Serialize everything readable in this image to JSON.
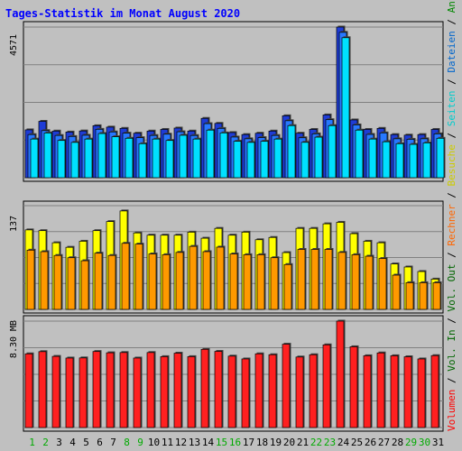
{
  "chart_data": {
    "type": "bar",
    "title": "Tages-Statistik im Monat August 2020",
    "days": [
      "1",
      "2",
      "3",
      "4",
      "5",
      "6",
      "7",
      "8",
      "9",
      "10",
      "11",
      "12",
      "13",
      "14",
      "15",
      "16",
      "17",
      "18",
      "19",
      "20",
      "21",
      "22",
      "23",
      "24",
      "25",
      "26",
      "27",
      "28",
      "29",
      "30",
      "31"
    ],
    "weekend_days": [
      1,
      2,
      8,
      9,
      15,
      16,
      22,
      23,
      29,
      30
    ],
    "grid": true,
    "panels": [
      {
        "name": "requests",
        "max_label": "4571",
        "ymax": 4571,
        "series": [
          {
            "name": "Anfragen",
            "color": "#1e3cd6",
            "values": [
              1452,
              1710,
              1415,
              1385,
              1418,
              1577,
              1535,
              1497,
              1349,
              1415,
              1465,
              1506,
              1415,
              1800,
              1648,
              1369,
              1309,
              1349,
              1415,
              1879,
              1349,
              1465,
              1905,
              4571,
              1753,
              1465,
              1497,
              1309,
              1292,
              1309,
              1465
            ]
          },
          {
            "name": "Dateien",
            "color": "#2878ff",
            "values": [
              1418,
              1538,
              1391,
              1360,
              1397,
              1578,
              1498,
              1461,
              1323,
              1391,
              1430,
              1503,
              1390,
              1750,
              1606,
              1343,
              1290,
              1326,
              1391,
              1838,
              1321,
              1441,
              1870,
              4520,
              1712,
              1423,
              1470,
              1290,
              1275,
              1290,
              1441
            ]
          },
          {
            "name": "Seiten",
            "color": "#00e0ff",
            "values": [
              1391,
              1577,
              1349,
              1290,
              1391,
              1559,
              1461,
              1415,
              1251,
              1391,
              1349,
              1506,
              1391,
              1663,
              1579,
              1323,
              1290,
              1323,
              1391,
              1800,
              1292,
              1449,
              1800,
              4467,
              1663,
              1391,
              1309,
              1251,
              1230,
              1276,
              1415
            ]
          }
        ]
      },
      {
        "name": "visits",
        "max_label": "137",
        "ymax": 137,
        "series": [
          {
            "name": "Besuche",
            "color": "#ffff00",
            "values": [
              105,
              104,
              88,
              82,
              90,
              104,
              116,
              130,
              101,
              98,
              98,
              98,
              102,
              94,
              107,
              98,
              102,
              92,
              95,
              75,
              107,
              107,
              113,
              115,
              100,
              90,
              88,
              60,
              56,
              50,
              40
            ]
          },
          {
            "name": "Rechner",
            "color": "#ff9900",
            "values": [
              83,
              81,
              76,
              73,
              69,
              79,
              76,
              92,
              91,
              78,
              77,
              80,
              88,
              81,
              87,
              78,
              77,
              77,
              73,
              64,
              84,
              84,
              84,
              80,
              77,
              75,
              72,
              50,
              40,
              40,
              40
            ]
          }
        ]
      },
      {
        "name": "volume",
        "max_label": "8.30 MB",
        "ymax": 8.3,
        "series": [
          {
            "name": "Volumen",
            "color": "#ff2020",
            "values": [
              5.75,
              5.92,
              5.55,
              5.42,
              5.43,
              5.93,
              5.83,
              5.85,
              5.42,
              5.85,
              5.53,
              5.8,
              5.53,
              6.1,
              5.94,
              5.57,
              5.35,
              5.75,
              5.68,
              6.5,
              5.5,
              5.68,
              6.45,
              8.3,
              6.3,
              5.6,
              5.82,
              5.6,
              5.52,
              5.35,
              5.61
            ]
          }
        ]
      }
    ],
    "legend": {
      "position": "right",
      "entries": [
        {
          "text": "Volumen",
          "color": "#ff0000"
        },
        {
          "text": "Vol. In",
          "color": "#006600"
        },
        {
          "text": "Vol. Out",
          "color": "#006600"
        },
        {
          "text": "Rechner",
          "color": "#ff6600"
        },
        {
          "text": "Besuche",
          "color": "#cccc00"
        },
        {
          "text": "Seiten",
          "color": "#00cccc"
        },
        {
          "text": "Dateien",
          "color": "#0066cc"
        },
        {
          "text": "Anfragen",
          "color": "#008800"
        }
      ],
      "separator": " / "
    },
    "colors": {
      "title": "#0000ff",
      "weekday_label": "#000000",
      "weekend_label": "#00aa00",
      "background": "#c0c0c0",
      "gridline": "#808080"
    }
  }
}
